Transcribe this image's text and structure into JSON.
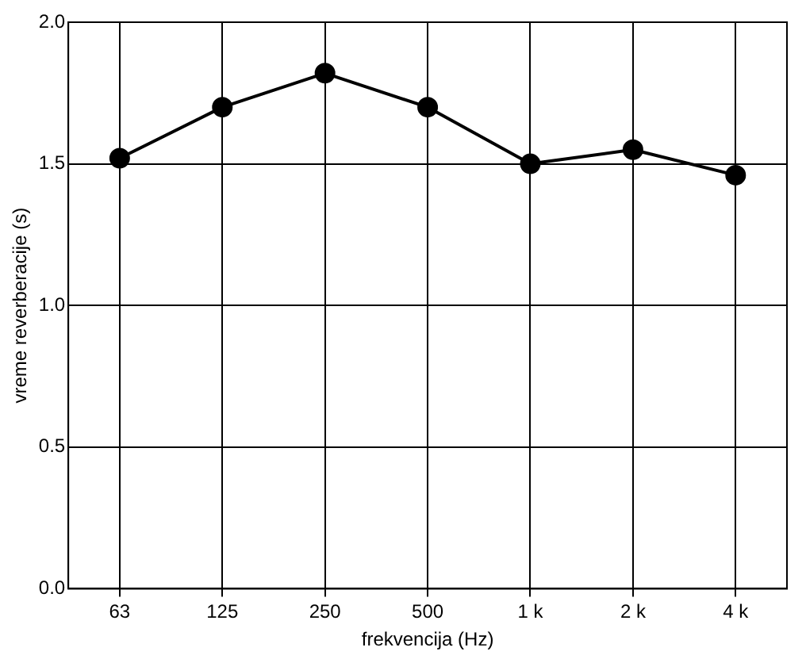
{
  "chart_data": {
    "type": "line",
    "xlabel": "frekvencija (Hz)",
    "ylabel": "vreme reverberacije (s)",
    "categories": [
      "63",
      "125",
      "250",
      "500",
      "1 k",
      "2 k",
      "4 k"
    ],
    "series": [
      {
        "color": "#000000",
        "values": [
          1.52,
          1.7,
          1.82,
          1.7,
          1.5,
          1.55,
          1.46
        ]
      }
    ],
    "ylim": [
      0,
      2
    ],
    "yticks": [
      {
        "value": 0,
        "label": "0.0"
      },
      {
        "value": 0.5,
        "label": "0.5"
      },
      {
        "value": 1,
        "label": "1.0"
      },
      {
        "value": 1.5,
        "label": "1.5"
      },
      {
        "value": 2,
        "label": "2.0"
      }
    ],
    "grid": true,
    "marker": "circle",
    "line_style": "solid",
    "legend": false
  }
}
